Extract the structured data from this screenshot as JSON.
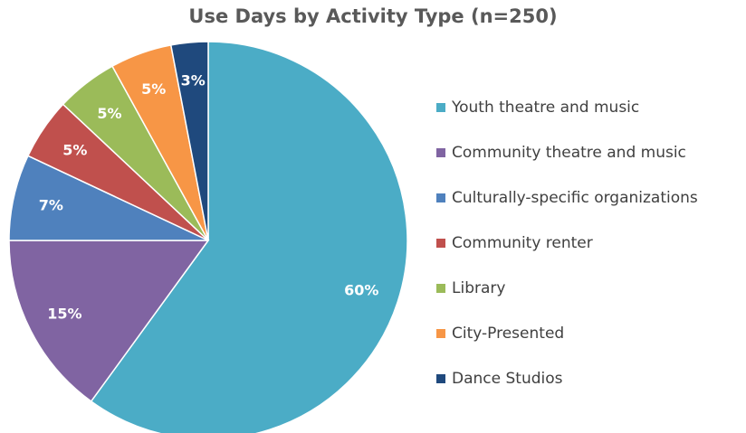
{
  "chart_data": {
    "type": "pie",
    "title": "Use Days by Activity Type (n=250)",
    "legend_position": "right",
    "slices": [
      {
        "label": "Youth theatre and music",
        "value": 60,
        "display": "60%",
        "color": "#4BACC6"
      },
      {
        "label": "Community theatre and music",
        "value": 15,
        "display": "15%",
        "color": "#8064A2"
      },
      {
        "label": "Culturally-specific organizations",
        "value": 7,
        "display": "7%",
        "color": "#4F81BD"
      },
      {
        "label": "Community renter",
        "value": 5,
        "display": "5%",
        "color": "#C0504D"
      },
      {
        "label": "Library",
        "value": 5,
        "display": "5%",
        "color": "#9BBB59"
      },
      {
        "label": "City-Presented",
        "value": 5,
        "display": "5%",
        "color": "#F79646"
      },
      {
        "label": "Dance Studios",
        "value": 3,
        "display": "3%",
        "color": "#1F497D"
      }
    ]
  }
}
